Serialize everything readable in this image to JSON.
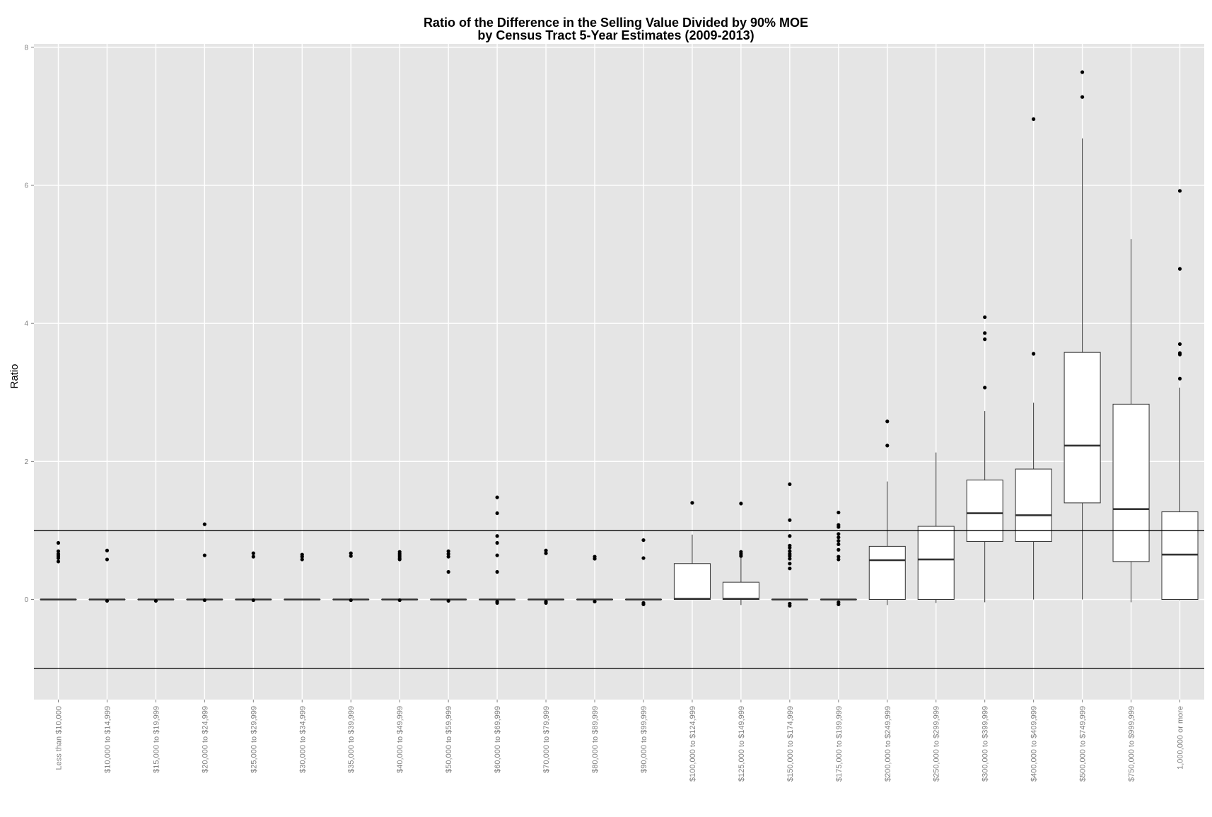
{
  "chart_data": {
    "type": "boxplot",
    "title_line1": "Ratio of the Difference in the Selling Value Divided by 90% MOE",
    "title_line2": "by Census Tract 5-Year Estimates (2009-2013)",
    "xlabel": "",
    "ylabel": "Ratio",
    "ylim": [
      -1.45,
      8.05
    ],
    "yticks": [
      0,
      2,
      4,
      6,
      8
    ],
    "reference_lines": [
      1,
      -1
    ],
    "grid": true,
    "legend": "none",
    "colors": {
      "panel": "#e5e5e5",
      "grid_major": "#ffffff",
      "grid_minor": "#f2f2f2",
      "box_fill": "#ffffff",
      "line": "#333333",
      "point": "#000000",
      "tick_label": "#7f7f7f"
    },
    "categories": [
      "Less than $10,000",
      "$10,000 to $14,999",
      "$15,000 to $19,999",
      "$20,000 to $24,999",
      "$25,000 to $29,999",
      "$30,000 to $34,999",
      "$35,000 to $39,999",
      "$40,000 to $49,999",
      "$50,000 to $59,999",
      "$60,000 to $69,999",
      "$70,000 to $79,999",
      "$80,000 to $89,999",
      "$90,000 to $99,999",
      "$100,000 to $124,999",
      "$125,000 to $149,999",
      "$150,000 to $174,999",
      "$175,000 to $199,999",
      "$200,000 to $249,999",
      "$250,000 to $299,999",
      "$300,000 to $399,999",
      "$400,000 to $409,999",
      "$500,000 to $749,999",
      "$750,000 to $999,999",
      "1,000,000 or more"
    ],
    "boxes": [
      {
        "q1": 0,
        "median": 0,
        "q3": 0,
        "whisker_low": 0,
        "whisker_high": 0,
        "outliers": [
          0.82,
          0.7,
          0.66,
          0.63,
          0.6,
          0.55
        ]
      },
      {
        "q1": 0,
        "median": 0,
        "q3": 0,
        "whisker_low": 0,
        "whisker_high": 0,
        "outliers": [
          0.71,
          0.58,
          -0.02
        ]
      },
      {
        "q1": 0,
        "median": 0,
        "q3": 0,
        "whisker_low": 0,
        "whisker_high": 0,
        "outliers": [
          -0.02
        ]
      },
      {
        "q1": 0,
        "median": 0,
        "q3": 0,
        "whisker_low": 0,
        "whisker_high": 0,
        "outliers": [
          1.09,
          0.64,
          -0.01
        ]
      },
      {
        "q1": 0,
        "median": 0,
        "q3": 0,
        "whisker_low": 0,
        "whisker_high": 0,
        "outliers": [
          0.67,
          0.62,
          -0.01
        ]
      },
      {
        "q1": 0,
        "median": 0,
        "q3": 0,
        "whisker_low": 0,
        "whisker_high": 0,
        "outliers": [
          0.65,
          0.62,
          0.58
        ]
      },
      {
        "q1": 0,
        "median": 0,
        "q3": 0,
        "whisker_low": 0,
        "whisker_high": 0,
        "outliers": [
          0.67,
          0.63,
          -0.01
        ]
      },
      {
        "q1": 0,
        "median": 0,
        "q3": 0,
        "whisker_low": 0,
        "whisker_high": 0,
        "outliers": [
          0.69,
          0.66,
          0.63,
          0.6,
          0.58,
          -0.01
        ]
      },
      {
        "q1": 0,
        "median": 0,
        "q3": 0,
        "whisker_low": 0,
        "whisker_high": 0,
        "outliers": [
          0.7,
          0.66,
          0.62,
          0.4,
          -0.02
        ]
      },
      {
        "q1": 0,
        "median": 0,
        "q3": 0,
        "whisker_low": 0,
        "whisker_high": 0,
        "outliers": [
          1.48,
          1.25,
          0.92,
          0.82,
          0.64,
          0.4,
          -0.03,
          -0.05
        ]
      },
      {
        "q1": 0,
        "median": 0,
        "q3": 0,
        "whisker_low": 0,
        "whisker_high": 0,
        "outliers": [
          0.71,
          0.67,
          -0.03,
          -0.05
        ]
      },
      {
        "q1": 0,
        "median": 0,
        "q3": 0,
        "whisker_low": 0,
        "whisker_high": 0,
        "outliers": [
          0.62,
          0.59,
          -0.03
        ]
      },
      {
        "q1": 0,
        "median": 0,
        "q3": 0,
        "whisker_low": 0,
        "whisker_high": 0,
        "outliers": [
          0.86,
          0.6,
          -0.05,
          -0.07
        ]
      },
      {
        "q1": 0,
        "median": 0.01,
        "q3": 0.52,
        "whisker_low": 0,
        "whisker_high": 0.94,
        "outliers": [
          1.4
        ]
      },
      {
        "q1": 0,
        "median": 0.01,
        "q3": 0.25,
        "whisker_low": -0.08,
        "whisker_high": 0.62,
        "outliers": [
          1.39,
          0.69,
          0.66,
          0.63
        ]
      },
      {
        "q1": 0,
        "median": 0,
        "q3": 0,
        "whisker_low": 0,
        "whisker_high": 0,
        "outliers": [
          1.67,
          1.15,
          0.92,
          0.78,
          0.75,
          0.7,
          0.66,
          0.63,
          0.59,
          0.52,
          0.45,
          -0.06,
          -0.09
        ]
      },
      {
        "q1": 0,
        "median": 0,
        "q3": 0,
        "whisker_low": 0,
        "whisker_high": 0,
        "outliers": [
          1.26,
          1.08,
          1.05,
          0.95,
          0.9,
          0.85,
          0.8,
          0.72,
          0.62,
          0.58,
          -0.04,
          -0.07
        ]
      },
      {
        "q1": 0,
        "median": 0.57,
        "q3": 0.77,
        "whisker_low": -0.08,
        "whisker_high": 1.71,
        "outliers": [
          2.58,
          2.23
        ]
      },
      {
        "q1": 0,
        "median": 0.58,
        "q3": 1.06,
        "whisker_low": -0.05,
        "whisker_high": 2.13,
        "outliers": []
      },
      {
        "q1": 0.84,
        "median": 1.25,
        "q3": 1.73,
        "whisker_low": -0.04,
        "whisker_high": 2.73,
        "outliers": [
          4.09,
          3.86,
          3.77,
          3.07
        ]
      },
      {
        "q1": 0.84,
        "median": 1.22,
        "q3": 1.89,
        "whisker_low": 0,
        "whisker_high": 2.85,
        "outliers": [
          6.96,
          3.56
        ]
      },
      {
        "q1": 1.4,
        "median": 2.23,
        "q3": 3.58,
        "whisker_low": 0,
        "whisker_high": 6.68,
        "outliers": [
          7.64,
          7.28
        ]
      },
      {
        "q1": 0.55,
        "median": 1.31,
        "q3": 2.83,
        "whisker_low": -0.04,
        "whisker_high": 5.22,
        "outliers": []
      },
      {
        "q1": 0,
        "median": 0.65,
        "q3": 1.27,
        "whisker_low": -0.01,
        "whisker_high": 3.07,
        "outliers": [
          5.92,
          4.79,
          3.7,
          3.57,
          3.55,
          3.2
        ]
      }
    ]
  }
}
